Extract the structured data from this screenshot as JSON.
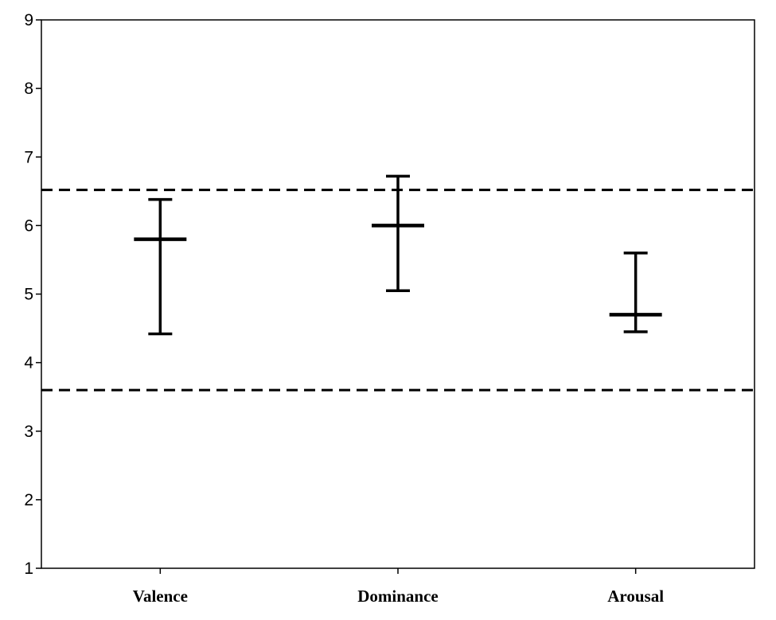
{
  "chart_data": {
    "type": "errorbar",
    "title": "",
    "xlabel": "",
    "ylabel": "",
    "ylim": [
      1,
      9
    ],
    "yticks": [
      "1",
      "2",
      "3",
      "4",
      "5",
      "6",
      "7",
      "8",
      "9"
    ],
    "categories": [
      "Valence",
      "Dominance",
      "Arousal"
    ],
    "series": [
      {
        "center": [
          5.8,
          6.0,
          4.7
        ],
        "low": [
          4.42,
          5.05,
          4.45
        ],
        "high": [
          6.38,
          6.72,
          5.6
        ]
      }
    ],
    "reference_lines": [
      6.52,
      3.6
    ],
    "reference_line_style": "dashed",
    "grid": false,
    "legend": "none"
  }
}
